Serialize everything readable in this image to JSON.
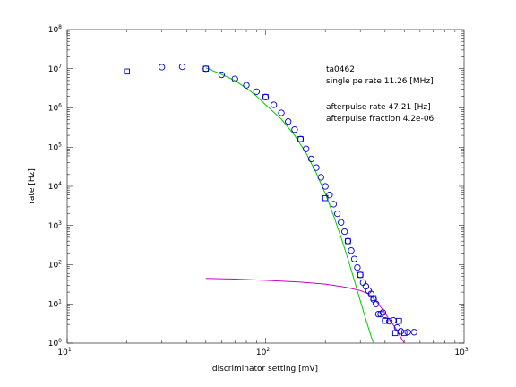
{
  "chart_data": {
    "type": "scatter",
    "title": "",
    "xlabel": "discriminator setting [mV]",
    "ylabel": "rate [Hz]",
    "x_scale": "log",
    "y_scale": "log",
    "xlim": [
      10,
      1000
    ],
    "ylim": [
      1,
      100000000
    ],
    "grid": false,
    "x_ticks": [
      {
        "base": "10",
        "exp": "1",
        "value": 10
      },
      {
        "base": "10",
        "exp": "2",
        "value": 100
      },
      {
        "base": "10",
        "exp": "3",
        "value": 1000
      }
    ],
    "y_ticks": [
      {
        "base": "10",
        "exp": "0",
        "value": 1
      },
      {
        "base": "10",
        "exp": "1",
        "value": 10
      },
      {
        "base": "10",
        "exp": "2",
        "value": 100
      },
      {
        "base": "10",
        "exp": "3",
        "value": 1000
      },
      {
        "base": "10",
        "exp": "4",
        "value": 10000
      },
      {
        "base": "10",
        "exp": "5",
        "value": 100000
      },
      {
        "base": "10",
        "exp": "6",
        "value": 1000000
      },
      {
        "base": "10",
        "exp": "7",
        "value": 10000000
      },
      {
        "base": "10",
        "exp": "8",
        "value": 100000000
      }
    ],
    "annotations": [
      "ta0462",
      "single pe rate 11.26 [MHz]",
      "afterpulse rate 47.21 [Hz]",
      "afterpulse fraction 4.2e-06"
    ],
    "series": [
      {
        "marker": "circle",
        "color": "#0000cc",
        "points": [
          [
            30,
            11000000
          ],
          [
            38,
            11200000
          ],
          [
            50,
            10000000
          ],
          [
            60,
            7000000
          ],
          [
            70,
            5500000
          ],
          [
            80,
            3800000
          ],
          [
            90,
            2600000
          ],
          [
            100,
            1900000
          ],
          [
            110,
            1200000
          ],
          [
            120,
            750000
          ],
          [
            130,
            450000
          ],
          [
            140,
            280000
          ],
          [
            150,
            160000
          ],
          [
            160,
            90000
          ],
          [
            170,
            50000
          ],
          [
            180,
            30000
          ],
          [
            190,
            17000
          ],
          [
            200,
            10000
          ],
          [
            210,
            6000
          ],
          [
            220,
            3500
          ],
          [
            230,
            2000
          ],
          [
            240,
            1200
          ],
          [
            250,
            700
          ],
          [
            260,
            400
          ],
          [
            270,
            230
          ],
          [
            280,
            140
          ],
          [
            290,
            85
          ],
          [
            300,
            55
          ],
          [
            310,
            35
          ],
          [
            320,
            28
          ],
          [
            330,
            22
          ],
          [
            340,
            18
          ],
          [
            350,
            13
          ],
          [
            360,
            10
          ],
          [
            370,
            5.5
          ],
          [
            380,
            5.5
          ],
          [
            390,
            6
          ],
          [
            400,
            3.8
          ],
          [
            420,
            3.6
          ],
          [
            440,
            3.8
          ],
          [
            460,
            2.5
          ],
          [
            480,
            2
          ],
          [
            520,
            1.9
          ],
          [
            560,
            1.9
          ]
        ]
      },
      {
        "marker": "square",
        "color": "#0000cc",
        "points": [
          [
            20,
            8500000
          ],
          [
            50,
            10000000
          ],
          [
            100,
            1900000
          ],
          [
            150,
            160000
          ],
          [
            200,
            5000
          ],
          [
            260,
            400
          ],
          [
            300,
            55
          ],
          [
            350,
            14
          ],
          [
            400,
            3.7
          ],
          [
            450,
            1.8
          ],
          [
            470,
            3.7
          ],
          [
            500,
            1.8
          ]
        ]
      },
      {
        "type": "line",
        "color": "#00cc00",
        "points": [
          [
            50,
            10500000
          ],
          [
            60,
            7200000
          ],
          [
            70,
            5000000
          ],
          [
            80,
            3200000
          ],
          [
            90,
            2000000
          ],
          [
            100,
            1200000
          ],
          [
            120,
            520000
          ],
          [
            140,
            200000
          ],
          [
            160,
            70000
          ],
          [
            180,
            22000
          ],
          [
            200,
            6500
          ],
          [
            220,
            1800
          ],
          [
            240,
            500
          ],
          [
            260,
            140
          ],
          [
            280,
            40
          ],
          [
            300,
            12
          ],
          [
            320,
            4
          ],
          [
            340,
            1.5
          ],
          [
            350,
            1
          ]
        ]
      },
      {
        "type": "line",
        "color": "#cc00cc",
        "points": [
          [
            50,
            45
          ],
          [
            70,
            43
          ],
          [
            100,
            40
          ],
          [
            150,
            36
          ],
          [
            200,
            32
          ],
          [
            250,
            27
          ],
          [
            300,
            22
          ],
          [
            330,
            18
          ],
          [
            360,
            12
          ],
          [
            390,
            7
          ],
          [
            420,
            4
          ],
          [
            450,
            2.5
          ],
          [
            480,
            1.4
          ],
          [
            500,
            1
          ]
        ]
      }
    ]
  }
}
